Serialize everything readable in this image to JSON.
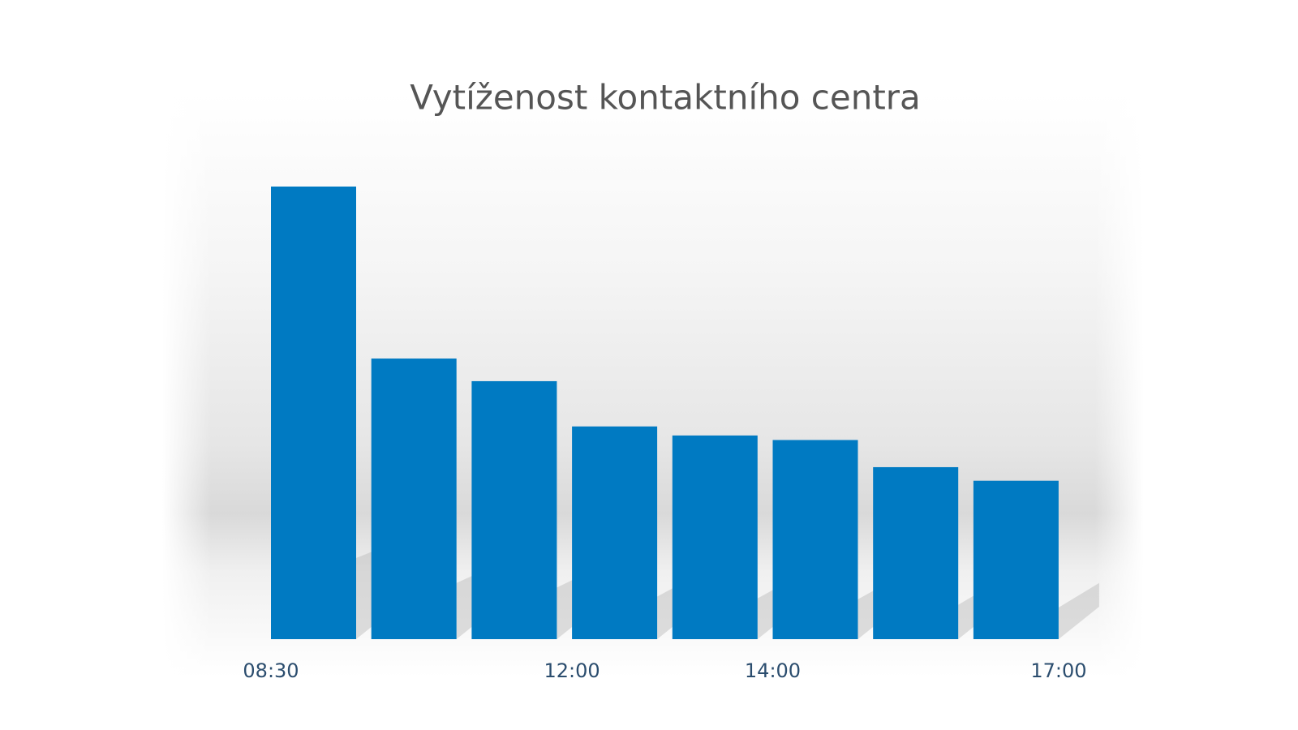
{
  "chart_data": {
    "type": "bar",
    "title": "Vytíženost kontaktního centra",
    "categories": [
      "08:30",
      null,
      null,
      "12:00",
      null,
      "14:00",
      null,
      "17:00"
    ],
    "values": [
      100,
      62,
      57,
      47,
      45,
      44,
      38,
      35
    ],
    "color": "#007ac2",
    "ylim": [
      0,
      100
    ]
  }
}
